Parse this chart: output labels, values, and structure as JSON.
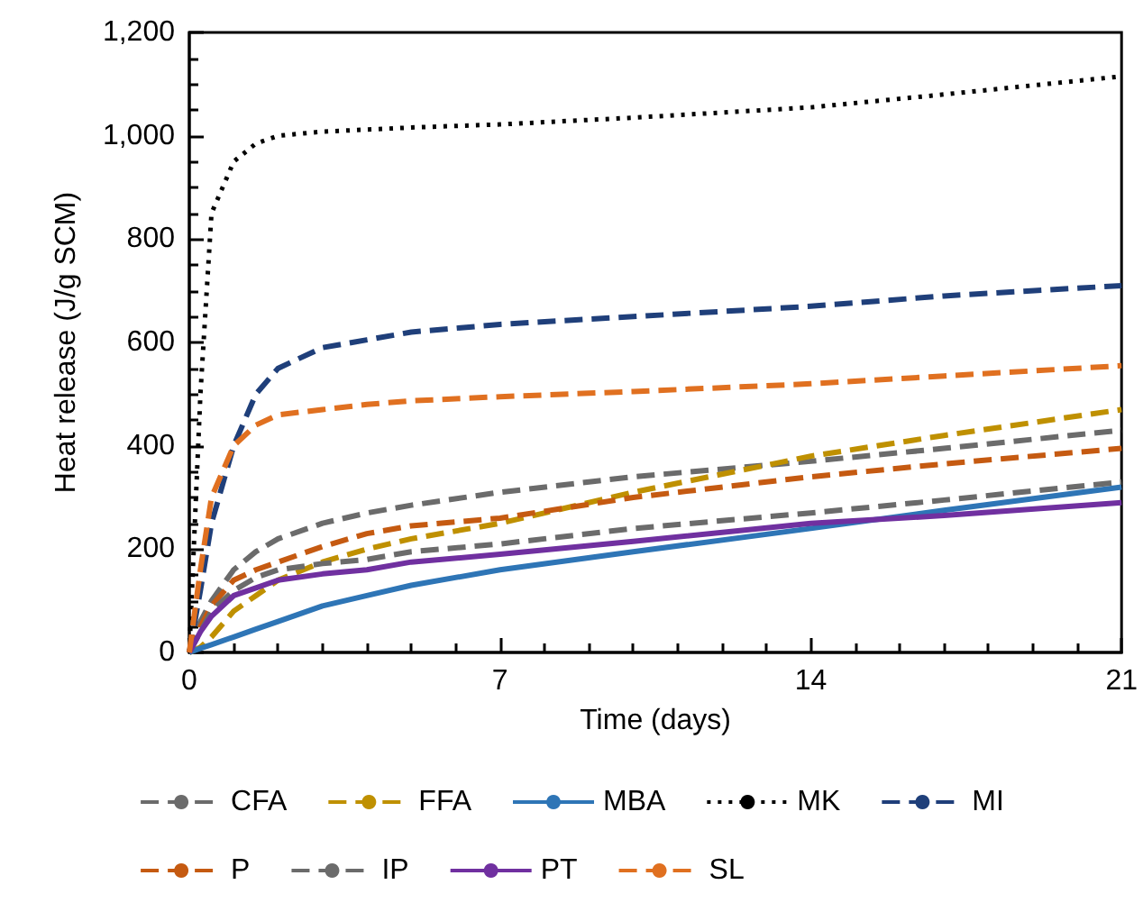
{
  "chart_data": {
    "type": "line",
    "xlabel": "Time (days)",
    "ylabel": "Heat release (J/g SCM)",
    "xlim": [
      0,
      21
    ],
    "xticks": [
      0,
      7,
      14,
      21
    ],
    "ylim": [
      0,
      1200
    ],
    "yticks": [
      0,
      {
        "value": 200,
        "label": "200"
      },
      {
        "value": 400,
        "label": "400"
      },
      {
        "value": 600,
        "label": "600"
      },
      {
        "value": 800,
        "label": "800"
      },
      {
        "value": 1000,
        "label": "1,000"
      },
      {
        "value": 1200,
        "label": "1,200"
      }
    ],
    "grid": false,
    "legend": "bottom",
    "marker": "none",
    "x": [
      0,
      0.25,
      0.5,
      1,
      1.5,
      2,
      3,
      4,
      5,
      7,
      10,
      14,
      17,
      21
    ],
    "series": [
      {
        "name": "CFA",
        "color": "#6b6b6b",
        "line_style": "dashed",
        "values": [
          0,
          60,
          100,
          160,
          195,
          220,
          250,
          270,
          285,
          310,
          340,
          370,
          395,
          430
        ]
      },
      {
        "name": "FFA",
        "color": "#bf9000",
        "line_style": "dashed",
        "values": [
          0,
          10,
          30,
          80,
          110,
          140,
          175,
          200,
          220,
          250,
          310,
          380,
          420,
          470
        ]
      },
      {
        "name": "MBA",
        "color": "#2e75b6",
        "line_style": "solid",
        "values": [
          0,
          8,
          15,
          30,
          45,
          60,
          90,
          110,
          130,
          160,
          195,
          240,
          275,
          320
        ]
      },
      {
        "name": "MK",
        "color": "#000000",
        "line_style": "dotted",
        "values": [
          0,
          500,
          850,
          950,
          985,
          1000,
          1008,
          1012,
          1016,
          1022,
          1035,
          1055,
          1080,
          1115
        ]
      },
      {
        "name": "MI",
        "color": "#1f3f7a",
        "line_style": "dashed",
        "values": [
          0,
          120,
          250,
          400,
          500,
          550,
          590,
          605,
          620,
          635,
          650,
          670,
          690,
          710
        ]
      },
      {
        "name": "P",
        "color": "#c55a11",
        "line_style": "dashed",
        "values": [
          0,
          50,
          90,
          140,
          160,
          175,
          205,
          230,
          245,
          260,
          300,
          340,
          365,
          395
        ]
      },
      {
        "name": "IP",
        "color": "#6b6b6b",
        "line_style": "dashed",
        "values": [
          0,
          40,
          80,
          120,
          145,
          160,
          172,
          180,
          195,
          210,
          240,
          270,
          295,
          330
        ]
      },
      {
        "name": "PT",
        "color": "#7030a0",
        "line_style": "solid",
        "values": [
          0,
          40,
          70,
          110,
          125,
          140,
          152,
          160,
          175,
          190,
          215,
          250,
          265,
          290
        ]
      },
      {
        "name": "SL",
        "color": "#e07020",
        "line_style": "dashed",
        "values": [
          0,
          160,
          300,
          400,
          440,
          460,
          470,
          480,
          487,
          495,
          505,
          520,
          535,
          555
        ]
      }
    ]
  }
}
